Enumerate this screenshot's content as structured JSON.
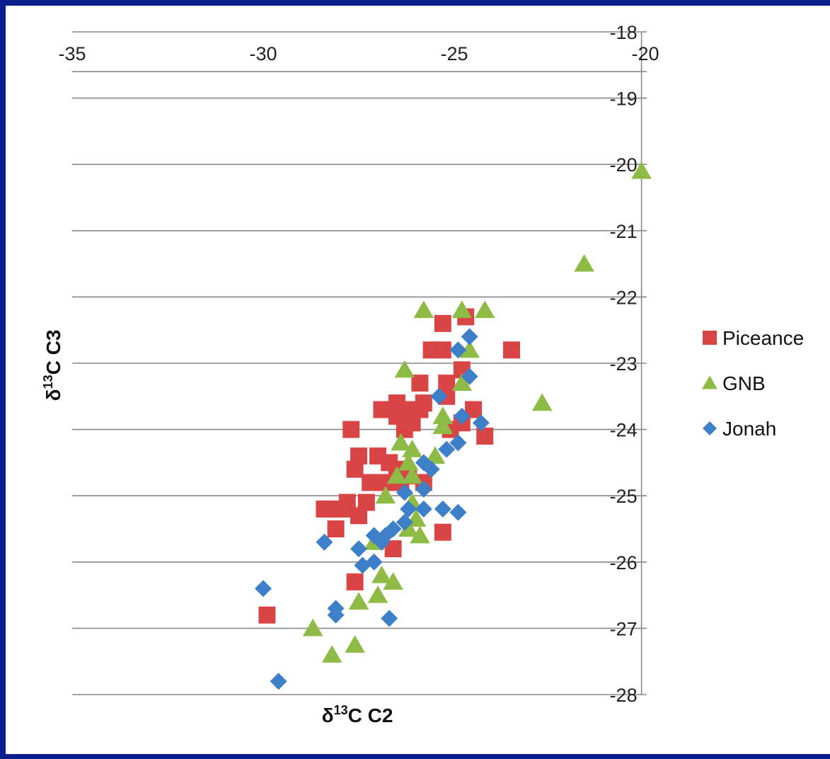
{
  "colors": {
    "frame": "#0b1f8c",
    "background": "#ffffff",
    "gridline": "#888888",
    "piceance": "#d94545",
    "gnb": "#8dbb45",
    "jonah": "#3d7fc9"
  },
  "chart_data": {
    "type": "scatter",
    "title": "",
    "xlabel": {
      "prefix": "δ",
      "sup": "13",
      "main": "C C2"
    },
    "ylabel": {
      "prefix": "δ",
      "sup": "13",
      "main": "C C3"
    },
    "xlim": [
      -35,
      -20
    ],
    "ylim": [
      -28,
      -18
    ],
    "x_ticks": [
      "-35",
      "-30",
      "-25",
      "-20"
    ],
    "y_ticks": [
      "-18",
      "-19",
      "-20",
      "-21",
      "-22",
      "-23",
      "-24",
      "-25",
      "-26",
      "-27",
      "-28"
    ],
    "x_axis_position": "top (crosses y at -18.6)",
    "y_axis_position": "right (crosses x at -20.1)",
    "grid": "horizontal major gridlines",
    "legend_position": "right",
    "series": [
      {
        "name": "Piceance",
        "marker": "square",
        "color": "#d94545",
        "points": [
          [
            -25.3,
            -22.4
          ],
          [
            -24.7,
            -22.3
          ],
          [
            -23.5,
            -22.8
          ],
          [
            -25.6,
            -22.8
          ],
          [
            -25.3,
            -22.8
          ],
          [
            -25.2,
            -23.3
          ],
          [
            -24.8,
            -23.1
          ],
          [
            -25.9,
            -23.3
          ],
          [
            -25.2,
            -23.5
          ],
          [
            -26.5,
            -23.6
          ],
          [
            -26.2,
            -23.7
          ],
          [
            -25.8,
            -23.6
          ],
          [
            -26.9,
            -23.7
          ],
          [
            -26.5,
            -23.8
          ],
          [
            -25.9,
            -23.7
          ],
          [
            -24.5,
            -23.7
          ],
          [
            -26.1,
            -23.9
          ],
          [
            -25.1,
            -24.0
          ],
          [
            -24.8,
            -23.9
          ],
          [
            -24.2,
            -24.1
          ],
          [
            -27.7,
            -24.0
          ],
          [
            -26.3,
            -24.0
          ],
          [
            -27.5,
            -24.4
          ],
          [
            -27.0,
            -24.4
          ],
          [
            -26.7,
            -24.5
          ],
          [
            -26.5,
            -24.6
          ],
          [
            -27.6,
            -24.6
          ],
          [
            -26.2,
            -24.7
          ],
          [
            -26.8,
            -24.8
          ],
          [
            -26.4,
            -24.8
          ],
          [
            -27.2,
            -24.8
          ],
          [
            -25.8,
            -24.8
          ],
          [
            -27.8,
            -25.1
          ],
          [
            -27.3,
            -25.1
          ],
          [
            -28.2,
            -25.2
          ],
          [
            -27.9,
            -25.2
          ],
          [
            -28.4,
            -25.2
          ],
          [
            -27.5,
            -25.3
          ],
          [
            -28.1,
            -25.5
          ],
          [
            -26.6,
            -25.8
          ],
          [
            -25.3,
            -25.55
          ],
          [
            -27.6,
            -26.3
          ],
          [
            -29.9,
            -26.8
          ]
        ]
      },
      {
        "name": "GNB",
        "marker": "triangle",
        "color": "#8dbb45",
        "points": [
          [
            -20.1,
            -20.1
          ],
          [
            -21.6,
            -21.5
          ],
          [
            -25.8,
            -22.2
          ],
          [
            -24.8,
            -22.2
          ],
          [
            -24.2,
            -22.2
          ],
          [
            -24.6,
            -22.8
          ],
          [
            -26.3,
            -23.1
          ],
          [
            -24.8,
            -23.3
          ],
          [
            -22.7,
            -23.6
          ],
          [
            -25.3,
            -23.8
          ],
          [
            -25.3,
            -23.95
          ],
          [
            -26.4,
            -24.2
          ],
          [
            -26.1,
            -24.3
          ],
          [
            -25.5,
            -24.4
          ],
          [
            -26.2,
            -24.5
          ],
          [
            -26.5,
            -24.7
          ],
          [
            -26.1,
            -24.7
          ],
          [
            -26.8,
            -25.0
          ],
          [
            -26.1,
            -25.1
          ],
          [
            -26.0,
            -25.35
          ],
          [
            -26.2,
            -25.5
          ],
          [
            -25.9,
            -25.6
          ],
          [
            -27.1,
            -25.7
          ],
          [
            -26.9,
            -26.2
          ],
          [
            -26.6,
            -26.3
          ],
          [
            -27.5,
            -26.6
          ],
          [
            -27.0,
            -26.5
          ],
          [
            -28.7,
            -27.0
          ],
          [
            -27.6,
            -27.25
          ],
          [
            -28.2,
            -27.4
          ]
        ]
      },
      {
        "name": "Jonah",
        "marker": "diamond",
        "color": "#3d7fc9",
        "points": [
          [
            -24.6,
            -22.6
          ],
          [
            -24.9,
            -22.8
          ],
          [
            -24.6,
            -23.2
          ],
          [
            -25.4,
            -23.5
          ],
          [
            -24.8,
            -23.8
          ],
          [
            -24.3,
            -23.9
          ],
          [
            -24.9,
            -24.2
          ],
          [
            -25.2,
            -24.3
          ],
          [
            -25.8,
            -24.5
          ],
          [
            -25.6,
            -24.6
          ],
          [
            -25.8,
            -24.9
          ],
          [
            -26.3,
            -24.95
          ],
          [
            -25.8,
            -25.2
          ],
          [
            -25.3,
            -25.2
          ],
          [
            -24.9,
            -25.25
          ],
          [
            -26.2,
            -25.2
          ],
          [
            -26.3,
            -25.4
          ],
          [
            -26.6,
            -25.5
          ],
          [
            -26.8,
            -25.6
          ],
          [
            -27.1,
            -25.6
          ],
          [
            -26.9,
            -25.7
          ],
          [
            -28.4,
            -25.7
          ],
          [
            -27.5,
            -25.8
          ],
          [
            -27.1,
            -26.0
          ],
          [
            -27.4,
            -26.05
          ],
          [
            -28.1,
            -26.7
          ],
          [
            -28.1,
            -26.8
          ],
          [
            -30.0,
            -26.4
          ],
          [
            -26.7,
            -26.85
          ],
          [
            -29.6,
            -27.8
          ]
        ]
      }
    ]
  }
}
